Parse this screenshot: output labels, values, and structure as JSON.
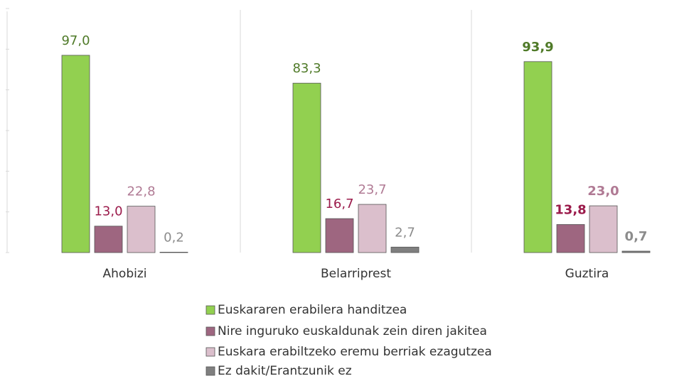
{
  "chart_data": {
    "type": "bar",
    "categories": [
      "Ahobizi",
      "Belarriprest",
      "Guztira"
    ],
    "series": [
      {
        "name": "Euskararen erabilera handitzea",
        "color": "#92d050",
        "label_color": "#4f7a28",
        "values": [
          97.0,
          83.3,
          93.9
        ],
        "value_labels": [
          "97,0",
          "83,3",
          "93,9"
        ]
      },
      {
        "name": "Nire inguruko euskaldunak zein diren jakitea",
        "color": "#9e6680",
        "label_color": "#9b1b4b",
        "values": [
          13.0,
          16.7,
          13.8
        ],
        "value_labels": [
          "13,0",
          "16,7",
          "13,8"
        ]
      },
      {
        "name": "Euskara erabiltzeko eremu berriak ezagutzea",
        "color": "#dbbfcc",
        "label_color": "#b07a94",
        "values": [
          22.8,
          23.7,
          23.0
        ],
        "value_labels": [
          "22,8",
          "23,7",
          "23,0"
        ]
      },
      {
        "name": "Ez dakit/Erantzunik ez",
        "color": "#7f7f7f",
        "label_color": "#8c8c8c",
        "values": [
          0.2,
          2.7,
          0.7
        ],
        "value_labels": [
          "0,2",
          "2,7",
          "0,7"
        ]
      }
    ],
    "ylim": [
      0,
      120
    ],
    "yticks": [
      0,
      20,
      40,
      60,
      80,
      100,
      120
    ]
  }
}
